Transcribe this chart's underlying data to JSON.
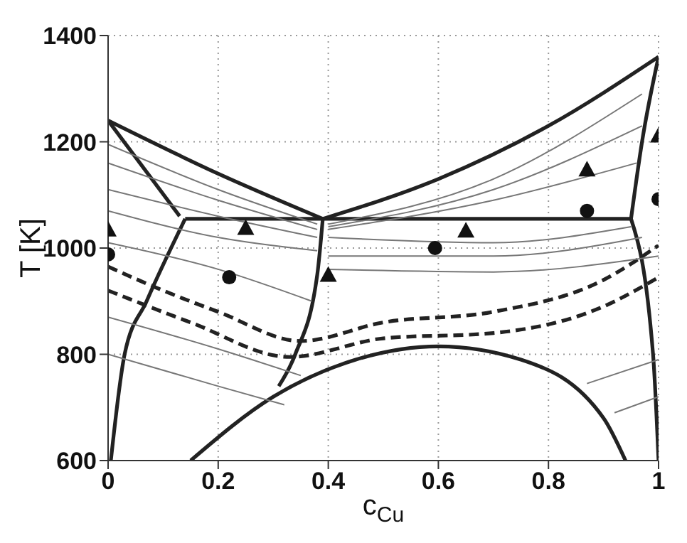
{
  "chart_data": {
    "type": "line",
    "xlabel": "c$_{Cu}$",
    "ylabel": "T [K]",
    "xlim": [
      0,
      1
    ],
    "xticks": [
      0,
      0.2,
      0.4,
      0.6,
      0.8,
      1
    ],
    "ylim": [
      600,
      1400
    ],
    "yticks": [
      600,
      800,
      1000,
      1200,
      1400
    ],
    "grid": true,
    "line_style": "solid",
    "series": [
      {
        "color": "#222222",
        "x": [
          0,
          0.2,
          0.39
        ],
        "values": [
          1240,
          1140,
          1055
        ]
      },
      {
        "color": "#222222",
        "x": [
          0.39,
          0.6,
          0.8,
          1
        ],
        "values": [
          1055,
          1130,
          1230,
          1360
        ]
      },
      {
        "color": "#222222",
        "x": [
          0,
          0.13
        ],
        "values": [
          1240,
          1060
        ]
      },
      {
        "color": "#222222",
        "x": [
          0.14,
          0.95
        ],
        "values": [
          1055,
          1055
        ]
      },
      {
        "color": "#222222",
        "x": [
          0.005,
          0.03,
          0.07,
          0.14
        ],
        "values": [
          600,
          800,
          900,
          1055
        ]
      },
      {
        "color": "#222222",
        "x": [
          0.95,
          0.97,
          1
        ],
        "values": [
          1055,
          1200,
          1360
        ]
      },
      {
        "color": "#222222",
        "x": [
          0.95,
          0.99,
          1
        ],
        "values": [
          1055,
          800,
          600
        ]
      },
      {
        "color": "#222222",
        "x": [
          0.39,
          0.38,
          0.34,
          0.31
        ],
        "values": [
          1055,
          950,
          800,
          740
        ]
      },
      {
        "color": "#222222",
        "x": [
          0.15,
          0.3,
          0.45,
          0.6,
          0.75,
          0.9,
          0.94
        ],
        "values": [
          600,
          720,
          790,
          815,
          790,
          680,
          600
        ]
      },
      {
        "color": "#222222",
        "line_style": "dashed",
        "x": [
          0,
          0.1,
          0.2,
          0.35,
          0.5,
          0.7,
          0.9,
          1
        ],
        "values": [
          965,
          920,
          880,
          825,
          860,
          880,
          940,
          1005
        ]
      },
      {
        "color": "#222222",
        "line_style": "dashed",
        "x": [
          0,
          0.15,
          0.33,
          0.5,
          0.7,
          0.9,
          1
        ],
        "values": [
          920,
          860,
          795,
          830,
          840,
          890,
          945
        ]
      },
      {
        "color": "#777777",
        "x": [
          0,
          0.2,
          0.38
        ],
        "values": [
          1195,
          1110,
          1045
        ]
      },
      {
        "color": "#777777",
        "x": [
          0,
          0.2,
          0.38
        ],
        "values": [
          1160,
          1090,
          1035
        ]
      },
      {
        "color": "#777777",
        "x": [
          0,
          0.2,
          0.38
        ],
        "values": [
          1110,
          1060,
          1020
        ]
      },
      {
        "color": "#777777",
        "x": [
          0,
          0.2,
          0.38
        ],
        "values": [
          1070,
          1020,
          995
        ]
      },
      {
        "color": "#777777",
        "x": [
          0,
          0.2,
          0.37
        ],
        "values": [
          1010,
          960,
          900
        ]
      },
      {
        "color": "#777777",
        "x": [
          0,
          0.2,
          0.35
        ],
        "values": [
          870,
          810,
          760
        ]
      },
      {
        "color": "#777777",
        "x": [
          0,
          0.2,
          0.32
        ],
        "values": [
          800,
          740,
          705
        ]
      },
      {
        "color": "#777777",
        "x": [
          0.4,
          0.7,
          0.97
        ],
        "values": [
          1045,
          1130,
          1290
        ]
      },
      {
        "color": "#777777",
        "x": [
          0.4,
          0.7,
          0.97
        ],
        "values": [
          1040,
          1110,
          1230
        ]
      },
      {
        "color": "#777777",
        "x": [
          0.4,
          0.7,
          0.96
        ],
        "values": [
          1035,
          1090,
          1160
        ]
      },
      {
        "color": "#777777",
        "x": [
          0.4,
          0.7,
          0.95
        ],
        "values": [
          1020,
          1010,
          1040
        ]
      },
      {
        "color": "#777777",
        "x": [
          0.4,
          0.7,
          0.97
        ],
        "values": [
          985,
          985,
          1020
        ]
      },
      {
        "color": "#777777",
        "x": [
          0.4,
          0.7,
          1
        ],
        "values": [
          960,
          955,
          985
        ]
      },
      {
        "color": "#777777",
        "x": [
          0.87,
          1
        ],
        "values": [
          745,
          790
        ]
      },
      {
        "color": "#777777",
        "x": [
          0.92,
          1
        ],
        "values": [
          690,
          720
        ]
      },
      {
        "type": "scatter",
        "marker": "triangle",
        "color": "#111111",
        "x": [
          0,
          0.25,
          0.4,
          0.65,
          0.87,
          1
        ],
        "values": [
          1035,
          1038,
          950,
          1033,
          1148,
          1212
        ]
      },
      {
        "type": "scatter",
        "marker": "circle",
        "color": "#111111",
        "x": [
          0,
          0.22,
          0.594,
          0.87,
          1
        ],
        "values": [
          988,
          945,
          1000,
          1070,
          1092
        ]
      }
    ]
  }
}
